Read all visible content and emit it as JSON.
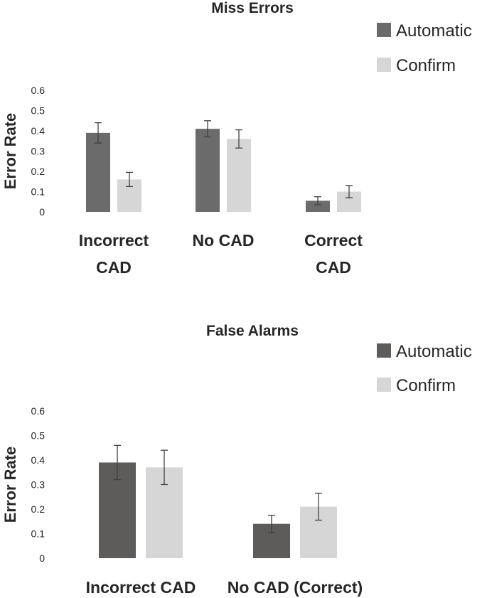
{
  "chart_data": [
    {
      "type": "bar",
      "title": "Miss Errors",
      "ylabel": "Error Rate",
      "xlabel": "",
      "ylim": [
        0,
        0.6
      ],
      "yticks": [
        "0",
        "0.1",
        "0.2",
        "0.3",
        "0.4",
        "0.5",
        "0.6"
      ],
      "grid": false,
      "legend": "top-right",
      "categories": [
        [
          "Incorrect",
          "CAD"
        ],
        [
          "No CAD"
        ],
        [
          "Correct",
          "CAD"
        ]
      ],
      "series": [
        {
          "name": "Automatic",
          "color": "#6b6b6b",
          "values": [
            0.39,
            0.41,
            0.055
          ],
          "errors": [
            0.05,
            0.04,
            0.02
          ]
        },
        {
          "name": "Confirm",
          "color": "#d6d6d6",
          "values": [
            0.16,
            0.36,
            0.1
          ],
          "errors": [
            0.035,
            0.045,
            0.03
          ]
        }
      ]
    },
    {
      "type": "bar",
      "title": "False Alarms",
      "ylabel": "Error Rate",
      "xlabel": "",
      "ylim": [
        0,
        0.6
      ],
      "yticks": [
        "0",
        "0.1",
        "0.2",
        "0.3",
        "0.4",
        "0.5",
        "0.6"
      ],
      "grid": false,
      "legend": "top-right",
      "categories": [
        [
          "Incorrect CAD"
        ],
        [
          "No CAD (Correct)"
        ]
      ],
      "series": [
        {
          "name": "Automatic",
          "color": "#5e5b5b",
          "values": [
            0.39,
            0.14
          ],
          "errors": [
            0.07,
            0.035
          ]
        },
        {
          "name": "Confirm",
          "color": "#d6d6d6",
          "values": [
            0.37,
            0.21
          ],
          "errors": [
            0.07,
            0.055
          ]
        }
      ]
    }
  ]
}
